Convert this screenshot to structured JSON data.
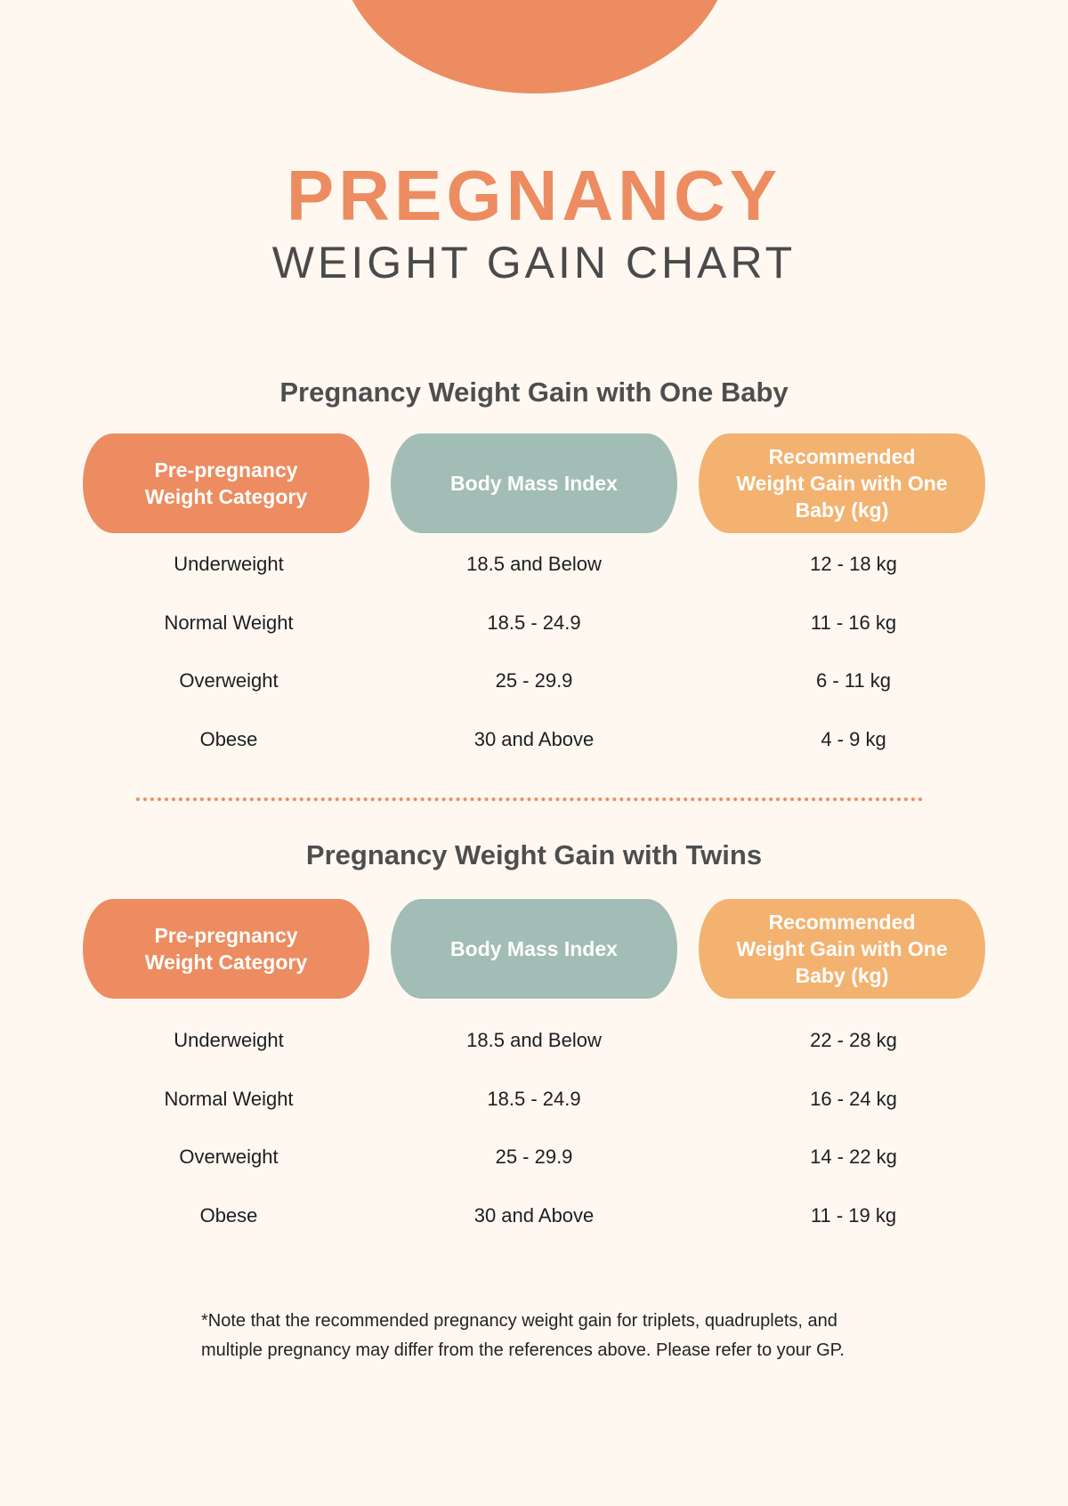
{
  "title": "PREGNANCY",
  "subtitle": "WEIGHT GAIN CHART",
  "tables": [
    {
      "heading": "Pregnancy Weight Gain with One Baby",
      "headers": [
        "Pre-pregnancy Weight Category",
        "Body Mass Index",
        "Recommended Weight Gain with One Baby (kg)"
      ],
      "rows": [
        [
          "Underweight",
          "18.5 and Below",
          "12 - 18 kg"
        ],
        [
          "Normal Weight",
          "18.5 - 24.9",
          "11 - 16 kg"
        ],
        [
          "Overweight",
          "25 - 29.9",
          "6 - 11 kg"
        ],
        [
          "Obese",
          "30 and Above",
          "4 - 9 kg"
        ]
      ]
    },
    {
      "heading": "Pregnancy Weight Gain with Twins",
      "headers": [
        "Pre-pregnancy Weight Category",
        "Body Mass Index",
        "Recommended Weight Gain with One Baby (kg)"
      ],
      "rows": [
        [
          "Underweight",
          "18.5 and Below",
          "22 - 28 kg"
        ],
        [
          "Normal Weight",
          "18.5 - 24.9",
          "16 - 24 kg"
        ],
        [
          "Overweight",
          "25 - 29.9",
          "14 - 22 kg"
        ],
        [
          "Obese",
          "30 and Above",
          "11 - 19 kg"
        ]
      ]
    }
  ],
  "note": "*Note that the recommended pregnancy weight gain for triplets, quadruplets, and multiple pregnancy may differ from the references above. Please refer to your GP.",
  "colors": {
    "background": "#fef8f1",
    "accent_orange": "#ec8c60",
    "sage": "#a2bdb5",
    "light_orange": "#f3b270",
    "heading_gray": "#4e4e4e"
  }
}
